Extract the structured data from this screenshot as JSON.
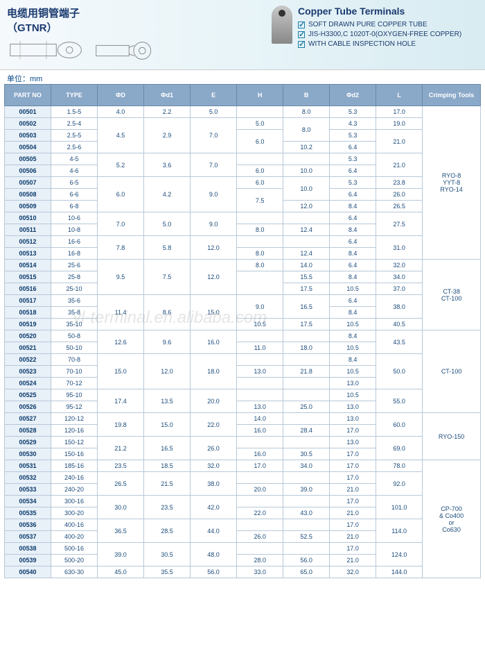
{
  "header": {
    "title_cn": "电缆用铜管端子",
    "title_code": "（GTNR）",
    "unit_label": "单位：mm",
    "title_en": "Copper Tube Terminals",
    "features": [
      "SOFT DRAWN PURE COPPER TUBE",
      "JIS-H3300,C 1020T-0(OXYGEN-FREE COPPER)",
      "WITH CABLE INSPECTION HOLE"
    ]
  },
  "watermark": "yl-terminal.en.alibaba.com",
  "columns": [
    "PART NO",
    "TYPE",
    "ΦD",
    "Φd1",
    "E",
    "H",
    "B",
    "Φd2",
    "L",
    "Crimping Tools"
  ],
  "col_widths": [
    "8%",
    "8%",
    "8%",
    "8%",
    "8%",
    "8%",
    "8%",
    "8%",
    "8%",
    "10%"
  ],
  "rows": [
    {
      "part": "00501",
      "type": "1.5-5",
      "D": "4.0",
      "d1": "2.2",
      "E": "5.0",
      "H": "",
      "B": "8.0",
      "d2": "5.3",
      "L": "17.0",
      "tool": ""
    },
    {
      "part": "00502",
      "type": "2.5-4",
      "D": "",
      "d1": "",
      "E": "",
      "H": "5.0",
      "B": "",
      "d2": "4.3",
      "L": "19.0",
      "tool": ""
    },
    {
      "part": "00503",
      "type": "2.5-5",
      "D": "4.5",
      "d1": "2.9",
      "E": "7.0",
      "H": "",
      "B": "8.0",
      "d2": "5.3",
      "L": "",
      "tool": ""
    },
    {
      "part": "00504",
      "type": "2.5-6",
      "D": "",
      "d1": "",
      "E": "",
      "H": "6.0",
      "B": "10.2",
      "d2": "6.4",
      "L": "21.0",
      "tool": ""
    },
    {
      "part": "00505",
      "type": "4-5",
      "D": "",
      "d1": "",
      "E": "",
      "H": "",
      "B": "",
      "d2": "5.3",
      "L": "",
      "tool": ""
    },
    {
      "part": "00506",
      "type": "4-6",
      "D": "5.2",
      "d1": "3.6",
      "E": "7.0",
      "H": "6.0",
      "B": "10.0",
      "d2": "6.4",
      "L": "21.0",
      "tool": "RYO-8\nYYT-8\nRYO-14"
    },
    {
      "part": "00507",
      "type": "6-5",
      "D": "",
      "d1": "",
      "E": "",
      "H": "6.0",
      "B": "",
      "d2": "5.3",
      "L": "23.8",
      "tool": ""
    },
    {
      "part": "00508",
      "type": "6-6",
      "D": "6.0",
      "d1": "4.2",
      "E": "9.0",
      "H": "",
      "B": "10.0",
      "d2": "6.4",
      "L": "26.0",
      "tool": ""
    },
    {
      "part": "00509",
      "type": "6-8",
      "D": "",
      "d1": "",
      "E": "",
      "H": "7.5",
      "B": "12.0",
      "d2": "8.4",
      "L": "26.5",
      "tool": ""
    },
    {
      "part": "00510",
      "type": "10-6",
      "D": "",
      "d1": "",
      "E": "",
      "H": "",
      "B": "",
      "d2": "6.4",
      "L": "",
      "tool": ""
    },
    {
      "part": "00511",
      "type": "10-8",
      "D": "7.0",
      "d1": "5.0",
      "E": "9.0",
      "H": "8.0",
      "B": "12.4",
      "d2": "8.4",
      "L": "27.5",
      "tool": ""
    },
    {
      "part": "00512",
      "type": "16-6",
      "D": "",
      "d1": "",
      "E": "",
      "H": "",
      "B": "",
      "d2": "6.4",
      "L": "",
      "tool": ""
    },
    {
      "part": "00513",
      "type": "16-8",
      "D": "7.8",
      "d1": "5.8",
      "E": "12.0",
      "H": "8.0",
      "B": "12.4",
      "d2": "8.4",
      "L": "31.0",
      "tool": ""
    },
    {
      "part": "00514",
      "type": "25-6",
      "D": "",
      "d1": "",
      "E": "",
      "H": "8.0",
      "B": "14.0",
      "d2": "6.4",
      "L": "32.0",
      "tool": ""
    },
    {
      "part": "00515",
      "type": "25-8",
      "D": "9.5",
      "d1": "7.5",
      "E": "12.0",
      "H": "",
      "B": "15.5",
      "d2": "8.4",
      "L": "34.0",
      "tool": ""
    },
    {
      "part": "00516",
      "type": "25-10",
      "D": "",
      "d1": "",
      "E": "",
      "H": "",
      "B": "17.5",
      "d2": "10.5",
      "L": "37.0",
      "tool": "CT-38\nCT-100"
    },
    {
      "part": "00517",
      "type": "35-6",
      "D": "",
      "d1": "",
      "E": "",
      "H": "",
      "B": "",
      "d2": "6.4",
      "L": "",
      "tool": ""
    },
    {
      "part": "00518",
      "type": "35-8",
      "D": "11.4",
      "d1": "8.6",
      "E": "15.0",
      "H": "9.0",
      "B": "16.5",
      "d2": "8.4",
      "L": "38.0",
      "tool": ""
    },
    {
      "part": "00519",
      "type": "35-10",
      "D": "",
      "d1": "",
      "E": "",
      "H": "10.5",
      "B": "17.5",
      "d2": "10.5",
      "L": "40.5",
      "tool": ""
    },
    {
      "part": "00520",
      "type": "50-8",
      "D": "",
      "d1": "",
      "E": "",
      "H": "",
      "B": "",
      "d2": "8.4",
      "L": "",
      "tool": ""
    },
    {
      "part": "00521",
      "type": "50-10",
      "D": "12.6",
      "d1": "9.6",
      "E": "16.0",
      "H": "11.0",
      "B": "18.0",
      "d2": "10.5",
      "L": "43.5",
      "tool": ""
    },
    {
      "part": "00522",
      "type": "70-8",
      "D": "",
      "d1": "",
      "E": "",
      "H": "",
      "B": "",
      "d2": "8.4",
      "L": "",
      "tool": ""
    },
    {
      "part": "00523",
      "type": "70-10",
      "D": "15.0",
      "d1": "12.0",
      "E": "18.0",
      "H": "13.0",
      "B": "21.8",
      "d2": "10.5",
      "L": "50.0",
      "tool": "CT-100"
    },
    {
      "part": "00524",
      "type": "70-12",
      "D": "",
      "d1": "",
      "E": "",
      "H": "",
      "B": "",
      "d2": "13.0",
      "L": "",
      "tool": ""
    },
    {
      "part": "00525",
      "type": "95-10",
      "D": "",
      "d1": "",
      "E": "",
      "H": "",
      "B": "",
      "d2": "10.5",
      "L": "",
      "tool": ""
    },
    {
      "part": "00526",
      "type": "95-12",
      "D": "17.4",
      "d1": "13.5",
      "E": "20.0",
      "H": "13.0",
      "B": "25.0",
      "d2": "13.0",
      "L": "55.0",
      "tool": ""
    },
    {
      "part": "00527",
      "type": "120-12",
      "D": "",
      "d1": "",
      "E": "",
      "H": "14.0",
      "B": "",
      "d2": "13.0",
      "L": "",
      "tool": ""
    },
    {
      "part": "00528",
      "type": "120-16",
      "D": "19.8",
      "d1": "15.0",
      "E": "22.0",
      "H": "16.0",
      "B": "28.4",
      "d2": "17.0",
      "L": "60.0",
      "tool": ""
    },
    {
      "part": "00529",
      "type": "150-12",
      "D": "",
      "d1": "",
      "E": "",
      "H": "",
      "B": "",
      "d2": "13.0",
      "L": "",
      "tool": "RYO-150"
    },
    {
      "part": "00530",
      "type": "150-16",
      "D": "21.2",
      "d1": "16.5",
      "E": "26.0",
      "H": "16.0",
      "B": "30.5",
      "d2": "17.0",
      "L": "69.0",
      "tool": ""
    },
    {
      "part": "00531",
      "type": "185-16",
      "D": "23.5",
      "d1": "18.5",
      "E": "32.0",
      "H": "17.0",
      "B": "34.0",
      "d2": "17.0",
      "L": "78.0",
      "tool": ""
    },
    {
      "part": "00532",
      "type": "240-16",
      "D": "",
      "d1": "",
      "E": "",
      "H": "",
      "B": "",
      "d2": "17.0",
      "L": "",
      "tool": ""
    },
    {
      "part": "00533",
      "type": "240-20",
      "D": "26.5",
      "d1": "21.5",
      "E": "38.0",
      "H": "20.0",
      "B": "39.0",
      "d2": "21.0",
      "L": "92.0",
      "tool": ""
    },
    {
      "part": "00534",
      "type": "300-16",
      "D": "",
      "d1": "",
      "E": "",
      "H": "",
      "B": "",
      "d2": "17.0",
      "L": "",
      "tool": ""
    },
    {
      "part": "00535",
      "type": "300-20",
      "D": "30.0",
      "d1": "23.5",
      "E": "42.0",
      "H": "22.0",
      "B": "43.0",
      "d2": "21.0",
      "L": "101.0",
      "tool": "CP-700\n& Co400\nor\nCo630"
    },
    {
      "part": "00536",
      "type": "400-16",
      "D": "",
      "d1": "",
      "E": "",
      "H": "",
      "B": "",
      "d2": "17.0",
      "L": "",
      "tool": ""
    },
    {
      "part": "00537",
      "type": "400-20",
      "D": "36.5",
      "d1": "28.5",
      "E": "44.0",
      "H": "26.0",
      "B": "52.5",
      "d2": "21.0",
      "L": "114.0",
      "tool": ""
    },
    {
      "part": "00538",
      "type": "500-16",
      "D": "",
      "d1": "",
      "E": "",
      "H": "",
      "B": "",
      "d2": "17.0",
      "L": "",
      "tool": ""
    },
    {
      "part": "00539",
      "type": "500-20",
      "D": "39.0",
      "d1": "30.5",
      "E": "48.0",
      "H": "28.0",
      "B": "56.0",
      "d2": "21.0",
      "L": "124.0",
      "tool": ""
    },
    {
      "part": "00540",
      "type": "630-30",
      "D": "45.0",
      "d1": "35.5",
      "E": "56.0",
      "H": "33.0",
      "B": "65.0",
      "d2": "32.0",
      "L": "144.0",
      "tool": ""
    }
  ],
  "merges": {
    "D": [
      [
        2,
        3
      ],
      [
        5,
        2
      ],
      [
        7,
        3
      ],
      [
        10,
        2
      ],
      [
        12,
        2
      ],
      [
        14,
        3
      ],
      [
        17,
        3
      ],
      [
        20,
        2
      ],
      [
        22,
        3
      ],
      [
        25,
        2
      ],
      [
        27,
        2
      ],
      [
        29,
        2
      ],
      [
        32,
        2
      ],
      [
        34,
        2
      ],
      [
        36,
        2
      ],
      [
        38,
        2
      ]
    ],
    "d1": [
      [
        2,
        3
      ],
      [
        5,
        2
      ],
      [
        7,
        3
      ],
      [
        10,
        2
      ],
      [
        12,
        2
      ],
      [
        14,
        3
      ],
      [
        17,
        3
      ],
      [
        20,
        2
      ],
      [
        22,
        3
      ],
      [
        25,
        2
      ],
      [
        27,
        2
      ],
      [
        29,
        2
      ],
      [
        32,
        2
      ],
      [
        34,
        2
      ],
      [
        36,
        2
      ],
      [
        38,
        2
      ]
    ],
    "E": [
      [
        2,
        3
      ],
      [
        5,
        2
      ],
      [
        7,
        3
      ],
      [
        10,
        2
      ],
      [
        12,
        2
      ],
      [
        14,
        3
      ],
      [
        17,
        3
      ],
      [
        20,
        2
      ],
      [
        22,
        3
      ],
      [
        25,
        2
      ],
      [
        27,
        2
      ],
      [
        29,
        2
      ],
      [
        32,
        2
      ],
      [
        34,
        2
      ],
      [
        36,
        2
      ],
      [
        38,
        2
      ]
    ],
    "H": [
      [
        3,
        2
      ],
      [
        8,
        2
      ],
      [
        15,
        2
      ],
      [
        17,
        2
      ]
    ],
    "B": [
      [
        2,
        2
      ],
      [
        7,
        2
      ],
      [
        17,
        2
      ]
    ],
    "L": [
      [
        3,
        2
      ],
      [
        5,
        2
      ],
      [
        10,
        2
      ],
      [
        12,
        2
      ],
      [
        17,
        2
      ],
      [
        20,
        2
      ],
      [
        22,
        3
      ],
      [
        25,
        2
      ],
      [
        27,
        2
      ],
      [
        29,
        2
      ],
      [
        32,
        2
      ],
      [
        34,
        2
      ],
      [
        36,
        2
      ],
      [
        38,
        2
      ]
    ],
    "tool": [
      [
        1,
        13
      ],
      [
        14,
        6
      ],
      [
        20,
        7
      ],
      [
        27,
        4
      ],
      [
        31,
        10
      ]
    ]
  }
}
